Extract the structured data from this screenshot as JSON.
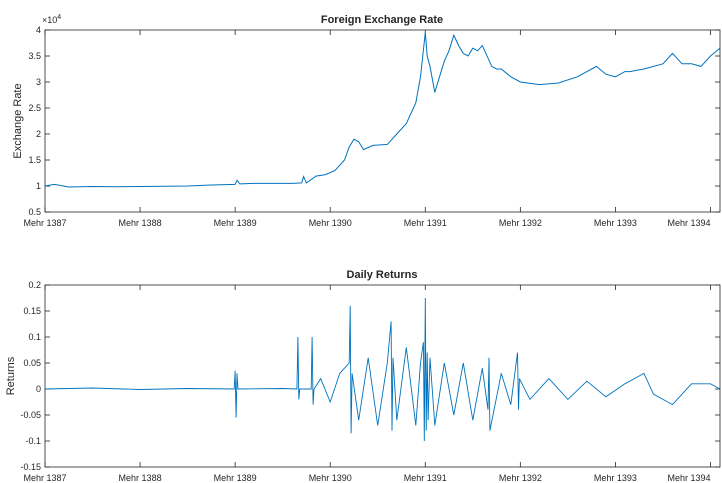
{
  "chart_data": [
    {
      "type": "line",
      "title": "Foreign Exchange Rate",
      "ylabel": "Exchange Rate",
      "xlabel": "",
      "y_multiplier_label": "×10",
      "y_multiplier_exponent": "4",
      "ylim": [
        5000,
        40000
      ],
      "yticks": [
        5000,
        10000,
        15000,
        20000,
        25000,
        30000,
        35000,
        40000
      ],
      "ytick_labels": [
        "0.5",
        "1",
        "1.5",
        "2",
        "2.5",
        "3",
        "3.5",
        "4"
      ],
      "x_unit": "years (solar hijri calendar)",
      "xlim": [
        1387,
        1394.1
      ],
      "xticks": [
        1387,
        1388,
        1389,
        1390,
        1391,
        1392,
        1393,
        1394
      ],
      "xtick_labels": [
        "Mehr 1387",
        "Mehr 1388",
        "Mehr 1389",
        "Mehr 1390",
        "Mehr 1391",
        "Mehr 1392",
        "Mehr 1393",
        "Mehr 1394"
      ],
      "grid": false,
      "line_color": "#0072BD",
      "series": [
        {
          "x": [
            1387.0,
            1387.1,
            1387.25,
            1387.5,
            1387.75,
            1388.0,
            1388.25,
            1388.5,
            1388.75,
            1389.0,
            1389.02,
            1389.05,
            1389.2,
            1389.4,
            1389.6,
            1389.7,
            1389.72,
            1389.75,
            1389.85,
            1389.95,
            1390.05,
            1390.15,
            1390.2,
            1390.25,
            1390.3,
            1390.35,
            1390.45,
            1390.6,
            1390.7,
            1390.8,
            1390.9,
            1390.95,
            1391.0,
            1391.02,
            1391.05,
            1391.1,
            1391.15,
            1391.2,
            1391.25,
            1391.3,
            1391.35,
            1391.4,
            1391.45,
            1391.5,
            1391.55,
            1391.6,
            1391.7,
            1391.75,
            1391.8,
            1391.9,
            1392.0,
            1392.2,
            1392.4,
            1392.6,
            1392.8,
            1392.9,
            1393.0,
            1393.1,
            1393.15,
            1393.3,
            1393.5,
            1393.6,
            1393.7,
            1393.8,
            1393.9,
            1394.0,
            1394.1
          ],
          "y": [
            10000,
            10300,
            9800,
            9900,
            9850,
            9900,
            9950,
            10000,
            10200,
            10300,
            11100,
            10400,
            10500,
            10500,
            10500,
            10600,
            11800,
            10600,
            11900,
            12200,
            13000,
            15000,
            17500,
            19000,
            18500,
            17000,
            17800,
            18000,
            20000,
            22000,
            26000,
            31000,
            39500,
            35000,
            33000,
            28000,
            31000,
            34000,
            36000,
            39000,
            37000,
            35500,
            35000,
            36500,
            36000,
            37000,
            33000,
            32500,
            32500,
            31000,
            30000,
            29500,
            29800,
            31000,
            33000,
            31500,
            31000,
            32000,
            32000,
            32500,
            33500,
            35500,
            33500,
            33500,
            33000,
            35000,
            36500
          ]
        }
      ]
    },
    {
      "type": "line",
      "title": "Daily Returns",
      "ylabel": "Returns",
      "xlabel": "",
      "ylim": [
        -0.15,
        0.2
      ],
      "yticks": [
        -0.15,
        -0.1,
        -0.05,
        0,
        0.05,
        0.1,
        0.15,
        0.2
      ],
      "ytick_labels": [
        "-0.15",
        "-0.1",
        "-0.05",
        "0",
        "0.05",
        "0.1",
        "0.15",
        "0.2"
      ],
      "x_unit": "years (solar hijri calendar)",
      "xlim": [
        1387,
        1394.1
      ],
      "xticks": [
        1387,
        1388,
        1389,
        1390,
        1391,
        1392,
        1393,
        1394
      ],
      "xtick_labels": [
        "Mehr 1387",
        "Mehr 1388",
        "Mehr 1389",
        "Mehr 1390",
        "Mehr 1391",
        "Mehr 1392",
        "Mehr 1393",
        "Mehr 1394"
      ],
      "grid": false,
      "line_color": "#0072BD",
      "series": [
        {
          "x": [
            1387.0,
            1387.5,
            1388.0,
            1388.5,
            1388.99,
            1389.0,
            1389.01,
            1389.02,
            1389.03,
            1389.5,
            1389.65,
            1389.66,
            1389.67,
            1389.68,
            1389.8,
            1389.81,
            1389.82,
            1389.83,
            1389.9,
            1390.0,
            1390.1,
            1390.2,
            1390.21,
            1390.22,
            1390.23,
            1390.3,
            1390.4,
            1390.5,
            1390.6,
            1390.64,
            1390.65,
            1390.66,
            1390.7,
            1390.8,
            1390.9,
            1390.95,
            1390.98,
            1390.99,
            1391.0,
            1391.01,
            1391.02,
            1391.03,
            1391.05,
            1391.1,
            1391.2,
            1391.3,
            1391.4,
            1391.5,
            1391.6,
            1391.66,
            1391.67,
            1391.68,
            1391.8,
            1391.9,
            1391.97,
            1391.98,
            1391.99,
            1392.1,
            1392.3,
            1392.5,
            1392.7,
            1392.9,
            1393.1,
            1393.3,
            1393.4,
            1393.6,
            1393.8,
            1394.0,
            1394.1
          ],
          "y": [
            0,
            0.002,
            -0.001,
            0.001,
            0,
            0.035,
            -0.055,
            0.03,
            0,
            0.001,
            0,
            0.1,
            -0.02,
            0,
            0,
            0.1,
            -0.03,
            0,
            0.02,
            -0.025,
            0.03,
            0.05,
            0.16,
            -0.085,
            0.03,
            -0.06,
            0.06,
            -0.07,
            0.05,
            0.13,
            -0.08,
            0.06,
            -0.06,
            0.08,
            -0.07,
            0.05,
            0.09,
            -0.1,
            0.175,
            -0.08,
            0.07,
            -0.06,
            0.06,
            -0.07,
            0.05,
            -0.05,
            0.05,
            -0.06,
            0.04,
            -0.04,
            0.06,
            -0.08,
            0.03,
            -0.03,
            0.07,
            -0.04,
            0.02,
            -0.02,
            0.02,
            -0.02,
            0.015,
            -0.015,
            0.01,
            0.03,
            -0.01,
            -0.03,
            0.01,
            0.01,
            0
          ]
        }
      ]
    }
  ]
}
